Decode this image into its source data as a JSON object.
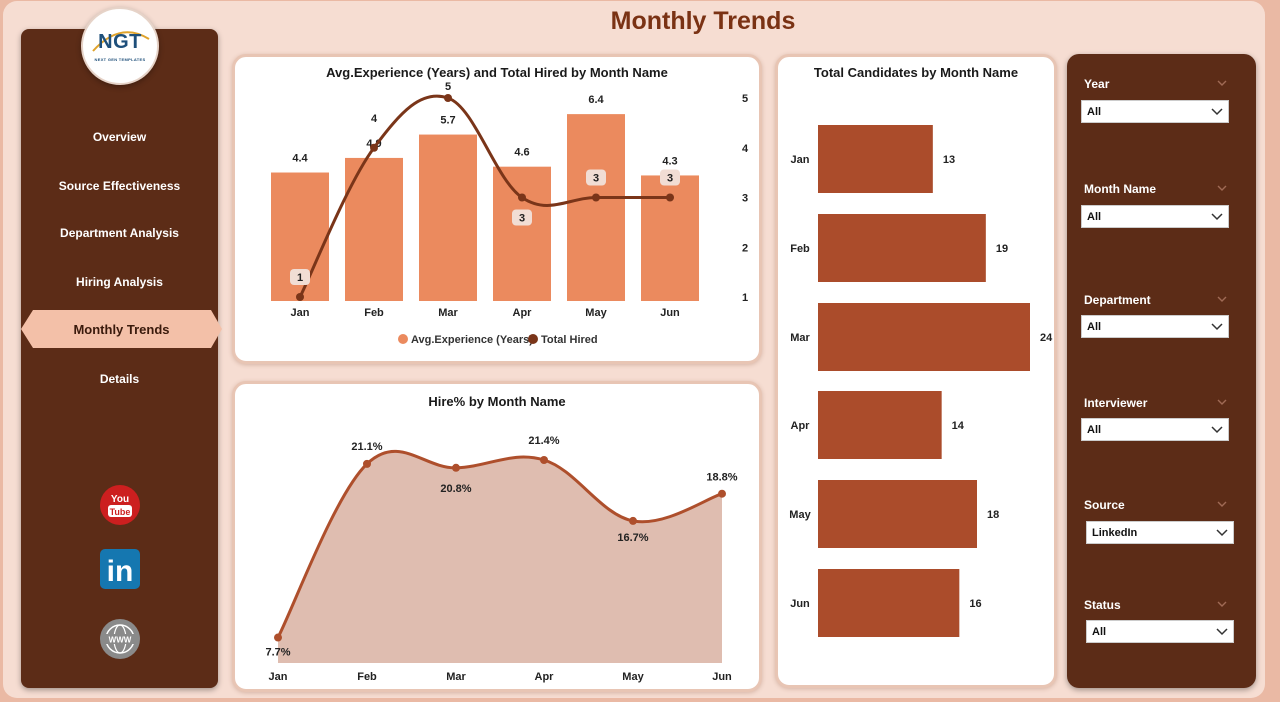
{
  "header": {
    "title": "Monthly Trends"
  },
  "logo": {
    "text": "NGT",
    "subtitle": "NEXT GEN TEMPLATES"
  },
  "sidebar": {
    "items": [
      {
        "label": "Overview",
        "active": false
      },
      {
        "label": "Source Effectiveness",
        "active": false
      },
      {
        "label": "Department Analysis",
        "active": false
      },
      {
        "label": "Hiring Analysis",
        "active": false
      },
      {
        "label": "Monthly Trends",
        "active": true
      },
      {
        "label": "Details",
        "active": false
      }
    ],
    "social": [
      {
        "icon": "youtube-icon",
        "text_top": "You",
        "text_bottom": "Tube",
        "color": "#cc1f1f"
      },
      {
        "icon": "linkedin-icon",
        "text": "in",
        "color": "#1577b0"
      },
      {
        "icon": "globe-icon",
        "text": "WWW",
        "color": "#7a7a7a"
      }
    ]
  },
  "colors": {
    "bar": "#eb8a5e",
    "line": "#7a3519",
    "hbar": "#ab4c2b",
    "area_fill": "#dfbdb0",
    "area_line": "#ae4f2c",
    "sidebar_bg": "#5c2c17",
    "title": "#7a3214"
  },
  "chart_data": [
    {
      "type": "bar",
      "title": "Avg.Experience (Years) and Total Hired by Month Name",
      "categories": [
        "Jan",
        "Feb",
        "Mar",
        "Apr",
        "May",
        "Jun"
      ],
      "series": [
        {
          "name": "Avg.Experience (Years)",
          "type": "bar",
          "values": [
            4.4,
            4.9,
            5.7,
            4.6,
            6.4,
            4.3
          ]
        },
        {
          "name": "Total Hired",
          "type": "line",
          "axis": "right",
          "values": [
            1,
            4,
            5,
            3,
            3,
            3
          ]
        }
      ],
      "y2_ticks": [
        5,
        4,
        3,
        2,
        1
      ],
      "legend": "bottom"
    },
    {
      "type": "area",
      "title": "Hire% by Month Name",
      "categories": [
        "Jan",
        "Feb",
        "Mar",
        "Apr",
        "May",
        "Jun"
      ],
      "values": [
        7.7,
        21.1,
        20.8,
        21.4,
        16.7,
        18.8
      ],
      "labels": [
        "7.7%",
        "21.1%",
        "20.8%",
        "21.4%",
        "16.7%",
        "18.8%"
      ]
    },
    {
      "type": "bar",
      "orientation": "horizontal",
      "title": "Total Candidates by Month Name",
      "categories": [
        "Jan",
        "Feb",
        "Mar",
        "Apr",
        "May",
        "Jun"
      ],
      "values": [
        13,
        19,
        24,
        14,
        18,
        16
      ]
    }
  ],
  "filters": [
    {
      "label": "Year",
      "value": "All"
    },
    {
      "label": "Month Name",
      "value": "All"
    },
    {
      "label": "Department",
      "value": "All"
    },
    {
      "label": "Interviewer",
      "value": "All"
    },
    {
      "label": "Source",
      "value": "LinkedIn"
    },
    {
      "label": "Status",
      "value": "All"
    }
  ]
}
